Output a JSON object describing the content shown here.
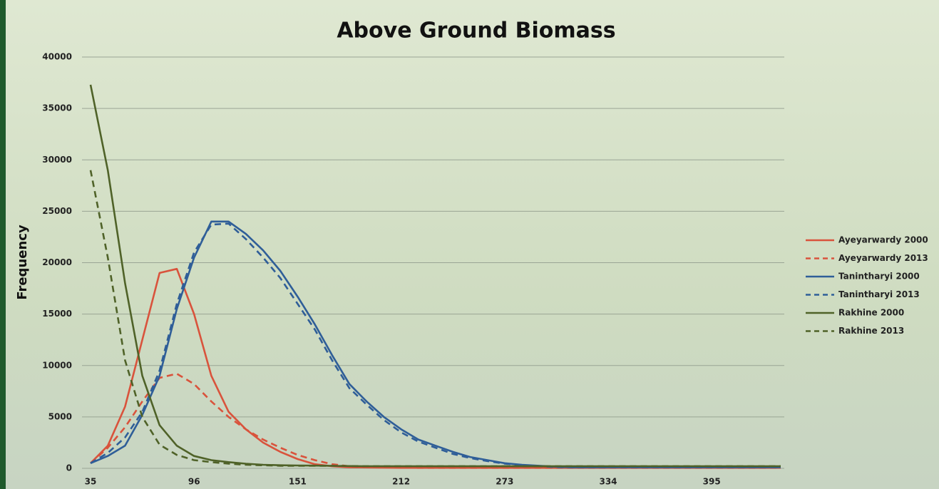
{
  "chart_data": {
    "type": "line",
    "title": "Above Ground Biomass",
    "y_label": "Frequency",
    "categories": [
      "35",
      null,
      null,
      null,
      null,
      null,
      "96",
      null,
      null,
      null,
      null,
      null,
      "151",
      null,
      null,
      null,
      null,
      null,
      "212",
      null,
      null,
      null,
      null,
      null,
      "273",
      null,
      null,
      null,
      null,
      null,
      "334",
      null,
      null,
      null,
      null,
      null,
      "395",
      null,
      null,
      null,
      null
    ],
    "ylim": [
      0,
      40000
    ],
    "yticks": [
      0,
      5000,
      10000,
      15000,
      20000,
      25000,
      30000,
      35000,
      40000
    ],
    "grid": true,
    "legend": "right",
    "series": [
      {
        "name": "Ayeyarwardy 2000",
        "color": "#d9533c",
        "line_style": "solid",
        "values": [
          500,
          2200,
          6000,
          12500,
          19000,
          19400,
          15000,
          9000,
          5500,
          3800,
          2500,
          1600,
          900,
          400,
          200,
          100,
          80,
          60,
          50,
          50,
          50,
          50,
          50,
          50,
          50,
          50,
          50,
          50,
          50,
          50,
          50,
          50,
          50,
          50,
          50,
          50,
          50,
          50,
          50,
          50,
          50
        ]
      },
      {
        "name": "Ayeyarwardy 2013",
        "color": "#d9533c",
        "line_style": "dashed",
        "values": [
          500,
          2000,
          4000,
          6500,
          8800,
          9200,
          8200,
          6500,
          5000,
          3800,
          2800,
          2000,
          1300,
          800,
          400,
          200,
          100,
          80,
          60,
          50,
          50,
          50,
          50,
          50,
          50,
          50,
          50,
          50,
          50,
          50,
          50,
          50,
          50,
          50,
          50,
          50,
          50,
          50,
          50,
          50,
          50
        ]
      },
      {
        "name": "Tanintharyi 2000",
        "color": "#2f5e98",
        "line_style": "solid",
        "values": [
          500,
          1200,
          2200,
          5200,
          9000,
          15500,
          20500,
          24000,
          24000,
          22800,
          21200,
          19200,
          16700,
          14000,
          11000,
          8200,
          6500,
          5000,
          3800,
          2800,
          2200,
          1600,
          1100,
          800,
          500,
          350,
          250,
          150,
          100,
          100,
          100,
          100,
          100,
          100,
          100,
          100,
          100,
          100,
          100,
          100,
          100
        ]
      },
      {
        "name": "Tanintharyi 2013",
        "color": "#2f5e98",
        "line_style": "dashed",
        "values": [
          500,
          1500,
          3000,
          5500,
          9500,
          16000,
          21000,
          23700,
          23800,
          22300,
          20500,
          18500,
          16000,
          13500,
          10500,
          7800,
          6200,
          4700,
          3500,
          2600,
          2000,
          1400,
          1000,
          700,
          450,
          300,
          200,
          120,
          100,
          100,
          100,
          100,
          100,
          100,
          100,
          100,
          100,
          100,
          100,
          100,
          100
        ]
      },
      {
        "name": "Rakhine 2000",
        "color": "#4f6228",
        "line_style": "solid",
        "values": [
          37300,
          29000,
          18000,
          9000,
          4200,
          2200,
          1200,
          800,
          600,
          450,
          350,
          300,
          280,
          260,
          240,
          220,
          200,
          200,
          200,
          200,
          200,
          200,
          200,
          200,
          200,
          200,
          200,
          200,
          200,
          200,
          200,
          200,
          200,
          200,
          200,
          200,
          200,
          200,
          200,
          200,
          200
        ]
      },
      {
        "name": "Rakhine 2013",
        "color": "#4f6228",
        "line_style": "dashed",
        "values": [
          29000,
          20500,
          10500,
          5000,
          2300,
          1300,
          800,
          600,
          450,
          350,
          300,
          250,
          250,
          250,
          250,
          220,
          200,
          200,
          200,
          200,
          200,
          200,
          200,
          200,
          200,
          200,
          200,
          200,
          200,
          200,
          200,
          200,
          200,
          200,
          200,
          200,
          200,
          200,
          200,
          200,
          200
        ]
      }
    ]
  }
}
